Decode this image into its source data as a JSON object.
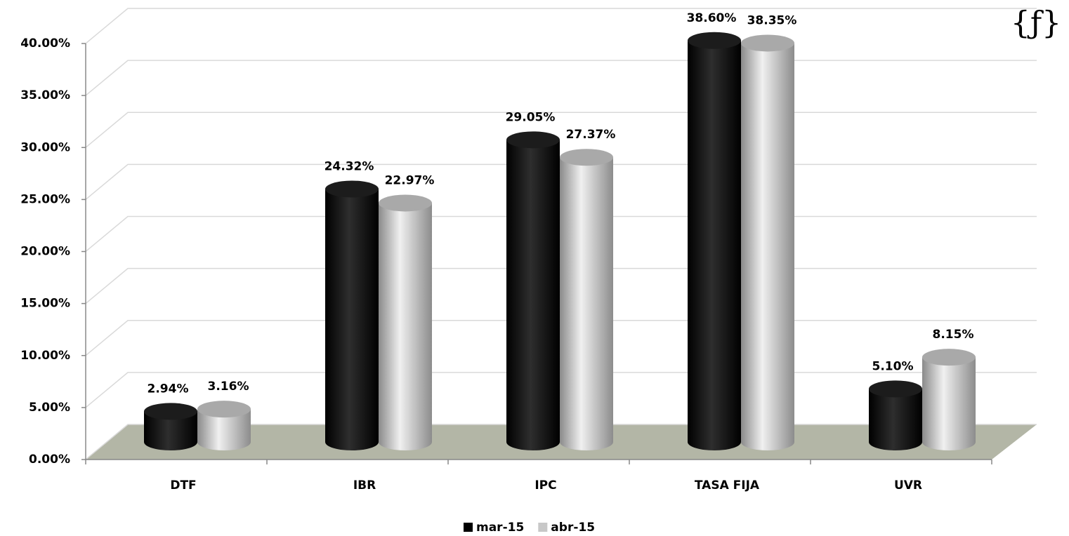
{
  "chart_data": {
    "type": "bar",
    "categories": [
      "DTF",
      "IBR",
      "IPC",
      "TASA FIJA",
      "UVR"
    ],
    "series": [
      {
        "name": "mar-15",
        "color": "#000000",
        "values": [
          2.94,
          24.32,
          29.05,
          38.6,
          5.1
        ],
        "value_labels": [
          "2.94%",
          "24.32%",
          "29.05%",
          "38.60%",
          "5.10%"
        ]
      },
      {
        "name": "abr-15",
        "color": "#c8c8c8",
        "values": [
          3.16,
          22.97,
          27.37,
          38.35,
          8.15
        ],
        "value_labels": [
          "3.16%",
          "22.97%",
          "27.37%",
          "38.35%",
          "8.15%"
        ]
      }
    ],
    "ylim": [
      0,
      40
    ],
    "yticks": [
      {
        "value": 0,
        "label": "0.00%"
      },
      {
        "value": 5,
        "label": "5.00%"
      },
      {
        "value": 10,
        "label": "10.00%"
      },
      {
        "value": 15,
        "label": "15.00%"
      },
      {
        "value": 20,
        "label": "20.00%"
      },
      {
        "value": 25,
        "label": "25.00%"
      },
      {
        "value": 30,
        "label": "30.00%"
      },
      {
        "value": 35,
        "label": "35.00%"
      },
      {
        "value": 40,
        "label": "40.00%"
      }
    ],
    "grid": true,
    "legend": "bottom",
    "annotations": [
      "{ƒ}"
    ]
  }
}
